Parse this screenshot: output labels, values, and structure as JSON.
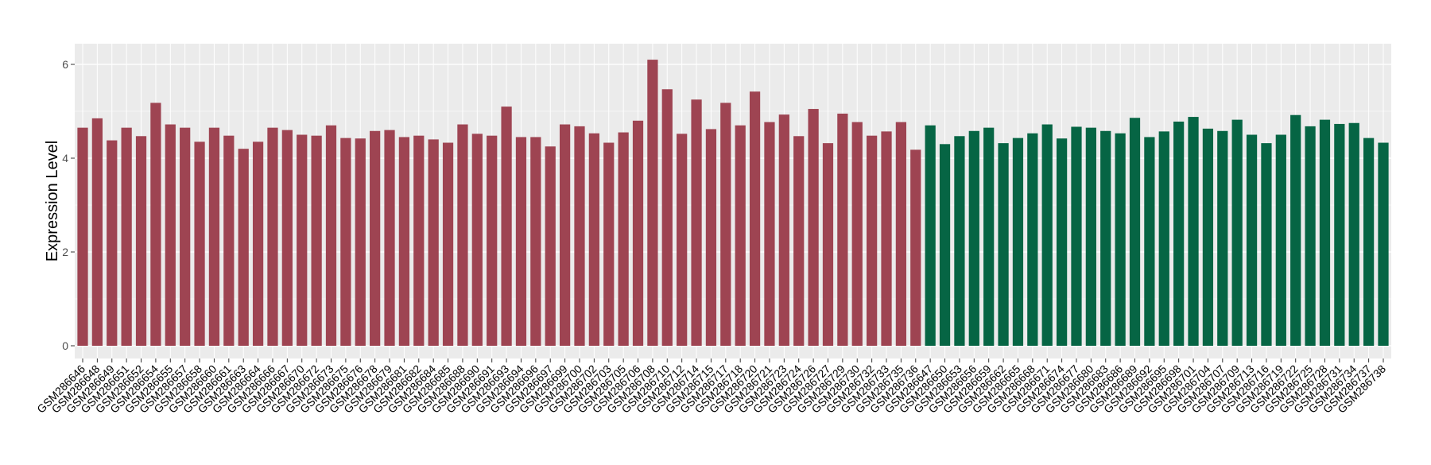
{
  "chart_data": {
    "type": "bar",
    "title": "",
    "xlabel": "",
    "ylabel": "Expression Level",
    "ylim": [
      0,
      6.35
    ],
    "yticks": [
      0,
      2,
      4,
      6
    ],
    "grid": true,
    "legend": "none",
    "colors": {
      "group1": "#9E4452",
      "group2": "#066544",
      "panel": "#EBEBEB",
      "grid": "#FFFFFF"
    },
    "series": [
      {
        "color": "#9E4452",
        "categories": [
          "GSM286646",
          "GSM286648",
          "GSM286649",
          "GSM286651",
          "GSM286652",
          "GSM286654",
          "GSM286655",
          "GSM286657",
          "GSM286658",
          "GSM286660",
          "GSM286661",
          "GSM286663",
          "GSM286664",
          "GSM286666",
          "GSM286667",
          "GSM286670",
          "GSM286672",
          "GSM286673",
          "GSM286675",
          "GSM286676",
          "GSM286678",
          "GSM286679",
          "GSM286681",
          "GSM286682",
          "GSM286684",
          "GSM286685",
          "GSM286688",
          "GSM286690",
          "GSM286691",
          "GSM286693",
          "GSM286694",
          "GSM286696",
          "GSM286697",
          "GSM286699",
          "GSM286700",
          "GSM286702",
          "GSM286703",
          "GSM286705",
          "GSM286706",
          "GSM286708",
          "GSM286710",
          "GSM286712",
          "GSM286714",
          "GSM286715",
          "GSM286717",
          "GSM286718",
          "GSM286720",
          "GSM286721",
          "GSM286723",
          "GSM286724",
          "GSM286726",
          "GSM286727",
          "GSM286729",
          "GSM286730",
          "GSM286732",
          "GSM286733",
          "GSM286735",
          "GSM286736"
        ],
        "values": [
          4.65,
          4.85,
          4.38,
          4.65,
          4.47,
          5.18,
          4.72,
          4.65,
          4.35,
          4.65,
          4.48,
          4.2,
          4.35,
          4.65,
          4.6,
          4.5,
          4.48,
          4.7,
          4.43,
          4.42,
          4.58,
          4.6,
          4.45,
          4.48,
          4.4,
          4.33,
          4.72,
          4.52,
          4.48,
          5.1,
          4.45,
          4.45,
          4.25,
          4.72,
          4.68,
          4.53,
          4.33,
          4.55,
          4.8,
          6.1,
          5.47,
          4.52,
          5.25,
          4.62,
          5.18,
          4.7,
          5.42,
          4.77,
          4.93,
          4.47,
          5.05,
          4.32,
          4.95,
          4.77,
          4.48,
          4.57,
          4.77,
          4.18
        ]
      },
      {
        "color": "#066544",
        "categories": [
          "GSM286647",
          "GSM286650",
          "GSM286653",
          "GSM286656",
          "GSM286659",
          "GSM286662",
          "GSM286665",
          "GSM286668",
          "GSM286671",
          "GSM286674",
          "GSM286677",
          "GSM286680",
          "GSM286683",
          "GSM286686",
          "GSM286689",
          "GSM286692",
          "GSM286695",
          "GSM286698",
          "GSM286701",
          "GSM286704",
          "GSM286707",
          "GSM286709",
          "GSM286713",
          "GSM286716",
          "GSM286719",
          "GSM286722",
          "GSM286725",
          "GSM286728",
          "GSM286731",
          "GSM286734",
          "GSM286737",
          "GSM286738"
        ],
        "values": [
          4.7,
          4.3,
          4.47,
          4.58,
          4.65,
          4.32,
          4.43,
          4.53,
          4.72,
          4.42,
          4.67,
          4.65,
          4.58,
          4.53,
          4.86,
          4.45,
          4.57,
          4.78,
          4.88,
          4.63,
          4.58,
          4.82,
          4.5,
          4.32,
          4.5,
          4.92,
          4.68,
          4.82,
          4.73,
          4.75,
          4.43,
          4.33
        ]
      }
    ]
  }
}
